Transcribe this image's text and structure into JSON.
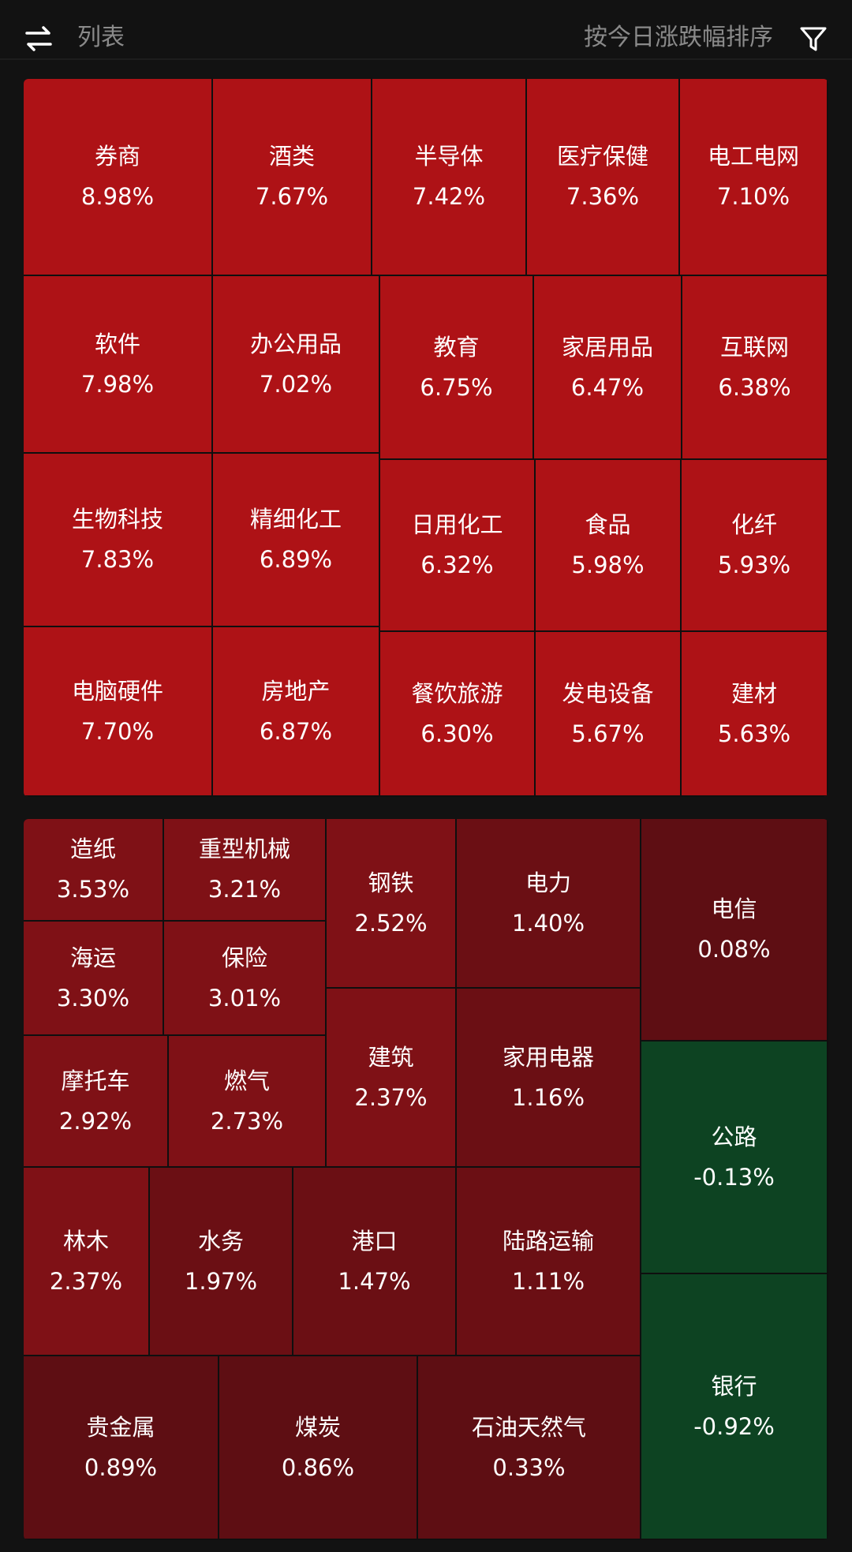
{
  "header": {
    "list_label": "列表",
    "sort_label": "按今日涨跌幅排序",
    "left_icon": "swap-arrows-icon",
    "right_icon": "filter-icon"
  },
  "colors": {
    "strong_red": "#AE1216",
    "deep_red": "#7F1116",
    "darker_red": "#6B0F14",
    "darkest_red": "#5E0E13",
    "green": "#0D4322"
  },
  "top_sectors": [
    {
      "name": "券商",
      "change": "8.98%"
    },
    {
      "name": "酒类",
      "change": "7.67%"
    },
    {
      "name": "半导体",
      "change": "7.42%"
    },
    {
      "name": "医疗保健",
      "change": "7.36%"
    },
    {
      "name": "电工电网",
      "change": "7.10%"
    },
    {
      "name": "软件",
      "change": "7.98%"
    },
    {
      "name": "办公用品",
      "change": "7.02%"
    },
    {
      "name": "教育",
      "change": "6.75%"
    },
    {
      "name": "家居用品",
      "change": "6.47%"
    },
    {
      "name": "互联网",
      "change": "6.38%"
    },
    {
      "name": "生物科技",
      "change": "7.83%"
    },
    {
      "name": "精细化工",
      "change": "6.89%"
    },
    {
      "name": "日用化工",
      "change": "6.32%"
    },
    {
      "name": "食品",
      "change": "5.98%"
    },
    {
      "name": "化纤",
      "change": "5.93%"
    },
    {
      "name": "电脑硬件",
      "change": "7.70%"
    },
    {
      "name": "房地产",
      "change": "6.87%"
    },
    {
      "name": "餐饮旅游",
      "change": "6.30%"
    },
    {
      "name": "发电设备",
      "change": "5.67%"
    },
    {
      "name": "建材",
      "change": "5.63%"
    }
  ],
  "bottom_sectors": [
    {
      "name": "造纸",
      "change": "3.53%"
    },
    {
      "name": "重型机械",
      "change": "3.21%"
    },
    {
      "name": "海运",
      "change": "3.30%"
    },
    {
      "name": "保险",
      "change": "3.01%"
    },
    {
      "name": "钢铁",
      "change": "2.52%"
    },
    {
      "name": "建筑",
      "change": "2.37%"
    },
    {
      "name": "电力",
      "change": "1.40%"
    },
    {
      "name": "家用电器",
      "change": "1.16%"
    },
    {
      "name": "电信",
      "change": "0.08%"
    },
    {
      "name": "摩托车",
      "change": "2.92%"
    },
    {
      "name": "燃气",
      "change": "2.73%"
    },
    {
      "name": "公路",
      "change": "-0.13%"
    },
    {
      "name": "林木",
      "change": "2.37%"
    },
    {
      "name": "水务",
      "change": "1.97%"
    },
    {
      "name": "港口",
      "change": "1.47%"
    },
    {
      "name": "陆路运输",
      "change": "1.11%"
    },
    {
      "name": "银行",
      "change": "-0.92%"
    },
    {
      "name": "贵金属",
      "change": "0.89%"
    },
    {
      "name": "煤炭",
      "change": "0.86%"
    },
    {
      "name": "石油天然气",
      "change": "0.33%"
    }
  ]
}
